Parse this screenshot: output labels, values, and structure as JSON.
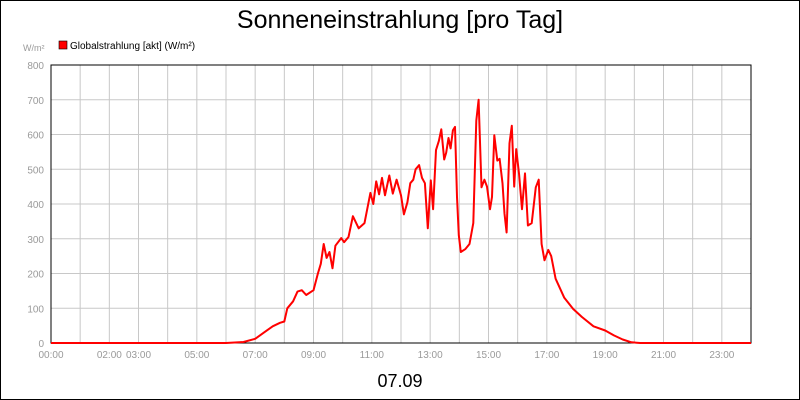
{
  "chart_data": {
    "type": "line",
    "title": "Sonneneinstrahlung [pro Tag]",
    "date_label": "07.09",
    "ylabel": "W/m²",
    "ylim": [
      0,
      800
    ],
    "y_ticks": [
      "0",
      "100",
      "200",
      "300",
      "400",
      "500",
      "600",
      "700",
      "800"
    ],
    "xlim": [
      0,
      24
    ],
    "x_ticks": [
      {
        "label": "00:00",
        "x": 0
      },
      {
        "label": "02:00",
        "x": 2
      },
      {
        "label": "03:00",
        "x": 3
      },
      {
        "label": "05:00",
        "x": 5
      },
      {
        "label": "07:00",
        "x": 7
      },
      {
        "label": "09:00",
        "x": 9
      },
      {
        "label": "11:00",
        "x": 11
      },
      {
        "label": "13:00",
        "x": 13
      },
      {
        "label": "15:00",
        "x": 15
      },
      {
        "label": "17:00",
        "x": 17
      },
      {
        "label": "19:00",
        "x": 19
      },
      {
        "label": "21:00",
        "x": 21
      },
      {
        "label": "23:00",
        "x": 23
      }
    ],
    "grid": true,
    "legend_position": "top-left",
    "series": [
      {
        "name": "Globalstrahlung [akt] (W/m²)",
        "color": "#ff0000",
        "points": [
          [
            0.0,
            0
          ],
          [
            6.0,
            0
          ],
          [
            6.6,
            3
          ],
          [
            7.0,
            12
          ],
          [
            7.3,
            30
          ],
          [
            7.6,
            48
          ],
          [
            7.85,
            58
          ],
          [
            8.0,
            62
          ],
          [
            8.1,
            100
          ],
          [
            8.3,
            120
          ],
          [
            8.45,
            148
          ],
          [
            8.6,
            152
          ],
          [
            8.75,
            138
          ],
          [
            9.0,
            152
          ],
          [
            9.15,
            200
          ],
          [
            9.25,
            228
          ],
          [
            9.35,
            285
          ],
          [
            9.45,
            245
          ],
          [
            9.55,
            262
          ],
          [
            9.65,
            215
          ],
          [
            9.75,
            280
          ],
          [
            9.95,
            302
          ],
          [
            10.05,
            290
          ],
          [
            10.2,
            305
          ],
          [
            10.35,
            365
          ],
          [
            10.55,
            330
          ],
          [
            10.75,
            345
          ],
          [
            10.95,
            432
          ],
          [
            11.05,
            400
          ],
          [
            11.15,
            465
          ],
          [
            11.25,
            428
          ],
          [
            11.35,
            475
          ],
          [
            11.45,
            425
          ],
          [
            11.6,
            482
          ],
          [
            11.72,
            430
          ],
          [
            11.85,
            470
          ],
          [
            12.0,
            425
          ],
          [
            12.1,
            370
          ],
          [
            12.22,
            405
          ],
          [
            12.32,
            460
          ],
          [
            12.42,
            470
          ],
          [
            12.5,
            500
          ],
          [
            12.62,
            512
          ],
          [
            12.72,
            475
          ],
          [
            12.82,
            460
          ],
          [
            12.92,
            330
          ],
          [
            13.02,
            468
          ],
          [
            13.1,
            385
          ],
          [
            13.2,
            555
          ],
          [
            13.3,
            582
          ],
          [
            13.38,
            615
          ],
          [
            13.48,
            528
          ],
          [
            13.55,
            548
          ],
          [
            13.63,
            590
          ],
          [
            13.7,
            560
          ],
          [
            13.78,
            612
          ],
          [
            13.85,
            622
          ],
          [
            13.92,
            420
          ],
          [
            13.98,
            310
          ],
          [
            14.05,
            262
          ],
          [
            14.2,
            270
          ],
          [
            14.35,
            285
          ],
          [
            14.48,
            345
          ],
          [
            14.58,
            640
          ],
          [
            14.66,
            700
          ],
          [
            14.76,
            448
          ],
          [
            14.86,
            470
          ],
          [
            14.95,
            450
          ],
          [
            15.05,
            385
          ],
          [
            15.12,
            420
          ],
          [
            15.2,
            598
          ],
          [
            15.3,
            525
          ],
          [
            15.38,
            530
          ],
          [
            15.48,
            460
          ],
          [
            15.55,
            372
          ],
          [
            15.62,
            318
          ],
          [
            15.72,
            575
          ],
          [
            15.8,
            625
          ],
          [
            15.88,
            450
          ],
          [
            15.95,
            558
          ],
          [
            16.05,
            485
          ],
          [
            16.15,
            385
          ],
          [
            16.25,
            488
          ],
          [
            16.35,
            338
          ],
          [
            16.48,
            345
          ],
          [
            16.62,
            448
          ],
          [
            16.72,
            470
          ],
          [
            16.82,
            285
          ],
          [
            16.92,
            238
          ],
          [
            17.05,
            268
          ],
          [
            17.15,
            250
          ],
          [
            17.3,
            185
          ],
          [
            17.6,
            130
          ],
          [
            17.9,
            98
          ],
          [
            18.2,
            75
          ],
          [
            18.6,
            48
          ],
          [
            19.0,
            36
          ],
          [
            19.3,
            22
          ],
          [
            19.6,
            10
          ],
          [
            19.9,
            2
          ],
          [
            20.2,
            0
          ],
          [
            24.0,
            0
          ]
        ]
      }
    ]
  }
}
